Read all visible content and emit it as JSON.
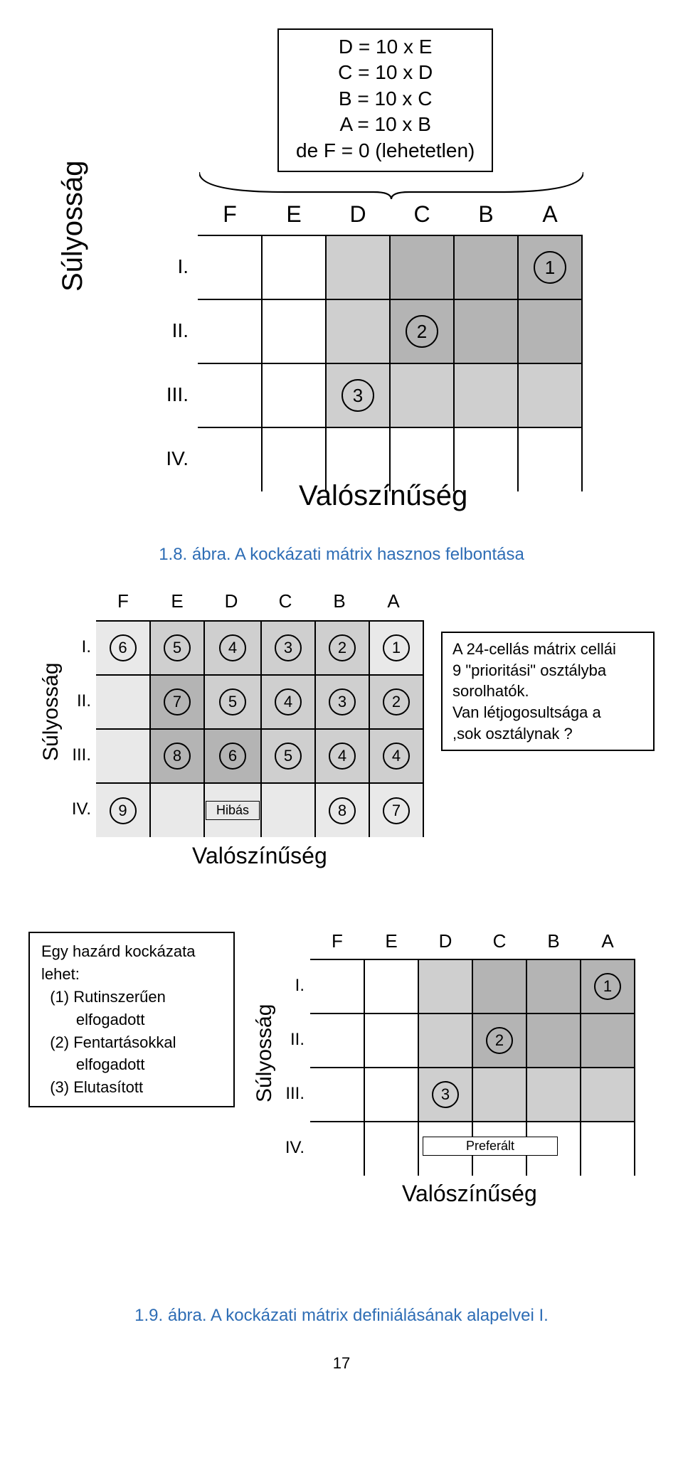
{
  "colors": {
    "white": "#ffffff",
    "light": "#e9e9e9",
    "mid": "#cfcfcf",
    "dark": "#b4b4b4",
    "caption": "#2e6db5"
  },
  "fig1": {
    "type": "matrix",
    "formula_lines": [
      "D = 10 x E",
      "C = 10 x D",
      "B = 10 x C",
      "A = 10 x B",
      "de F = 0 (lehetetlen)"
    ],
    "y_axis": "Súlyosság",
    "x_axis": "Valószínűség",
    "cols": [
      "F",
      "E",
      "D",
      "C",
      "B",
      "A"
    ],
    "rows": [
      "I.",
      "II.",
      "III.",
      "IV."
    ],
    "cells": [
      [
        {
          "s": "white"
        },
        {
          "s": "white"
        },
        {
          "s": "mid"
        },
        {
          "s": "dark"
        },
        {
          "s": "dark"
        },
        {
          "s": "dark",
          "v": "1"
        }
      ],
      [
        {
          "s": "white"
        },
        {
          "s": "white"
        },
        {
          "s": "mid"
        },
        {
          "s": "dark",
          "v": "2"
        },
        {
          "s": "dark"
        },
        {
          "s": "dark"
        }
      ],
      [
        {
          "s": "white"
        },
        {
          "s": "white"
        },
        {
          "s": "mid",
          "v": "3"
        },
        {
          "s": "mid"
        },
        {
          "s": "mid"
        },
        {
          "s": "mid"
        }
      ],
      [
        {
          "s": "white"
        },
        {
          "s": "white"
        },
        {
          "s": "white"
        },
        {
          "s": "white"
        },
        {
          "s": "white"
        },
        {
          "s": "white"
        }
      ]
    ],
    "circle_size": "lg",
    "caption": "1.8. ábra. A kockázati mátrix hasznos felbontása"
  },
  "fig2": {
    "type": "matrix",
    "y_axis": "Súlyosság",
    "x_axis": "Valószínűség",
    "cols": [
      "F",
      "E",
      "D",
      "C",
      "B",
      "A"
    ],
    "rows": [
      "I.",
      "II.",
      "III.",
      "IV."
    ],
    "cells": [
      [
        {
          "s": "light",
          "v": "6"
        },
        {
          "s": "mid",
          "v": "5"
        },
        {
          "s": "mid",
          "v": "4"
        },
        {
          "s": "mid",
          "v": "3"
        },
        {
          "s": "mid",
          "v": "2"
        },
        {
          "s": "light",
          "v": "1"
        }
      ],
      [
        {
          "s": "light"
        },
        {
          "s": "dark",
          "v": "7"
        },
        {
          "s": "mid",
          "v": "5"
        },
        {
          "s": "mid",
          "v": "4"
        },
        {
          "s": "mid",
          "v": "3"
        },
        {
          "s": "mid",
          "v": "2"
        }
      ],
      [
        {
          "s": "light"
        },
        {
          "s": "dark",
          "v": "8"
        },
        {
          "s": "dark",
          "v": "6"
        },
        {
          "s": "mid",
          "v": "5"
        },
        {
          "s": "mid",
          "v": "4"
        },
        {
          "s": "mid",
          "v": "4"
        }
      ],
      [
        {
          "s": "light",
          "v": "9"
        },
        {
          "s": "light"
        },
        {
          "s": "light",
          "label": "Hibás"
        },
        {
          "s": "light"
        },
        {
          "s": "light",
          "v": "8"
        },
        {
          "s": "light",
          "v": "7"
        }
      ]
    ],
    "circle_size": "sm",
    "sidebox_lines": [
      "A 24-cellás mátrix cellái",
      "9 \"prioritási\" osztályba",
      "sorolhatók.",
      "Van létjogosultsága a",
      ",sok osztálynak ?"
    ]
  },
  "fig3": {
    "type": "matrix",
    "leftbox_lines": [
      "Egy hazárd kockázata",
      "lehet:",
      "  (1) Rutinszerűen",
      "        elfogadott",
      "  (2) Fentartásokkal",
      "        elfogadott",
      "  (3) Elutasított"
    ],
    "y_axis": "Súlyosság",
    "x_axis": "Valószínűség",
    "cols": [
      "F",
      "E",
      "D",
      "C",
      "B",
      "A"
    ],
    "rows": [
      "I.",
      "II.",
      "III.",
      "IV."
    ],
    "cells": [
      [
        {
          "s": "white"
        },
        {
          "s": "white"
        },
        {
          "s": "mid"
        },
        {
          "s": "dark"
        },
        {
          "s": "dark"
        },
        {
          "s": "dark",
          "v": "1"
        }
      ],
      [
        {
          "s": "white"
        },
        {
          "s": "white"
        },
        {
          "s": "mid"
        },
        {
          "s": "dark",
          "v": "2"
        },
        {
          "s": "dark"
        },
        {
          "s": "dark"
        }
      ],
      [
        {
          "s": "white"
        },
        {
          "s": "white"
        },
        {
          "s": "mid",
          "v": "3"
        },
        {
          "s": "mid"
        },
        {
          "s": "mid"
        },
        {
          "s": "mid"
        }
      ],
      [
        {
          "s": "white"
        },
        {
          "s": "white"
        },
        {
          "s": "white"
        },
        {
          "s": "white"
        },
        {
          "s": "white"
        },
        {
          "s": "white"
        }
      ]
    ],
    "circle_size": "sm",
    "overlay": {
      "text": "Preferált",
      "row": 3,
      "col_from": 2,
      "col_to": 4
    },
    "caption": "1.9. ábra. A kockázati mátrix definiálásának alapelvei I."
  },
  "page_number": "17"
}
